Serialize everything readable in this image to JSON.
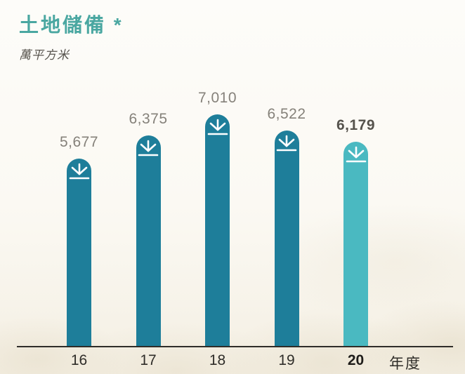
{
  "header": {
    "title": "土地儲備 *",
    "unit_label": "萬平方米",
    "title_color": "#4aa7a1"
  },
  "chart_data": {
    "type": "bar",
    "title": "土地儲備 *",
    "subtitle": "",
    "unit_label": "萬平方米",
    "categories": [
      "16",
      "17",
      "18",
      "19",
      "20"
    ],
    "values": [
      5677,
      6375,
      7010,
      6522,
      6179
    ],
    "value_labels": [
      "5,677",
      "6,375",
      "7,010",
      "6,522",
      "6,179"
    ],
    "x_axis_suffix": "年度",
    "xlabel": "年度",
    "ylabel": "萬平方米",
    "ylim": [
      0,
      7400
    ],
    "grid": false,
    "legend": null,
    "highlight_index": 4,
    "colors": {
      "bar": "#1e7e9a",
      "highlight_bar": "#4ab9c1",
      "value_label": "#85817a",
      "highlight_value_label": "#55524c",
      "axis_line": "#2f2d29",
      "title": "#4aa7a1",
      "icon": "#ffffff"
    },
    "bar_icon": "arrow-landing-icon"
  }
}
